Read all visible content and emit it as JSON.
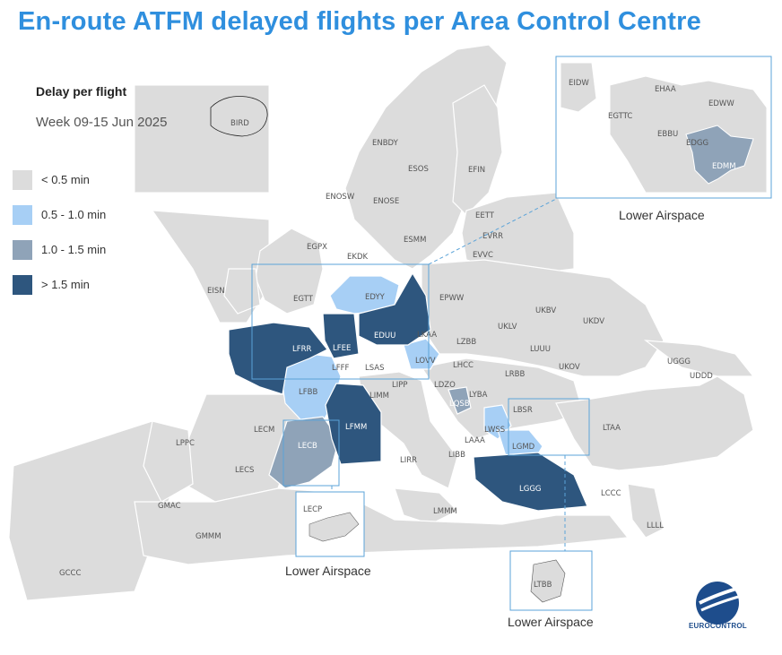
{
  "title": "En-route ATFM delayed flights per Area Control Centre",
  "legend": {
    "title": "Delay per flight",
    "period": "Week 09-15 Jun 2025",
    "items": [
      {
        "label": "<  0.5 min",
        "color": "#dcdcdc"
      },
      {
        "label": "0.5 - 1.0 min",
        "color": "#a7cff5"
      },
      {
        "label": "1.0 - 1.5 min",
        "color": "#8fa3b8"
      },
      {
        "label": ">  1.5 min",
        "color": "#2e567e"
      }
    ]
  },
  "colors": {
    "land": "#dcdcdc",
    "light_blue": "#a7cff5",
    "mid_blue": "#8fa3b8",
    "dark_blue": "#2e567e",
    "inset_border": "#5ba3d8",
    "title": "#2f8fde"
  },
  "acc_labels": {
    "BIRD": "BIRD",
    "EISN": "EISN",
    "EGPX": "EGPX",
    "EGTT": "EGTT",
    "ENOS": "ENOSW",
    "ENBD": "ENBDY",
    "ESOS": "ESOS",
    "EFIN": "EFIN",
    "ENOSE": "ENOSE",
    "ESMM": "ESMM",
    "EETT": "EETT",
    "EVRR": "EVRR",
    "EVVC": "EVVC",
    "EKDK": "EKDK",
    "EDYY": "EDYY",
    "EPWW": "EPWW",
    "UKBV": "UKBV",
    "UKDV": "UKDV",
    "UKLV": "UKLV",
    "LFRR": "LFRR",
    "LFEE": "LFEE",
    "EDUU": "EDUU",
    "LKAA": "LKAA",
    "LZBB": "LZBB",
    "LUUU": "LUUU",
    "LFFF": "LFFF",
    "LOVV": "LOVV",
    "LHCC": "LHCC",
    "LRBB": "LRBB",
    "UKOV": "UKOV",
    "LSAS": "LSAS",
    "LIPP": "LIPP",
    "LDZO": "LDZO",
    "UGGG": "UGGG",
    "UDDD": "UDDD",
    "LFBB": "LFBB",
    "LIMM": "LIMM",
    "LYBA": "LYBA",
    "LQSB": "LQSB",
    "LBSR": "LBSR",
    "LFMM": "LFMM",
    "LECM": "LECM",
    "LWSS": "LWSS",
    "LTAA": "LTAA",
    "LPPC": "LPPC",
    "LECB": "LECB",
    "LAAA": "LAAA",
    "LGMD": "LGMD",
    "LIBB": "LIBB",
    "LECS": "LECS",
    "LIRR": "LIRR",
    "LGGG": "LGGG",
    "LCCC": "LCCC",
    "GMAC": "GMAC",
    "LMMM": "LMMM",
    "LLLL": "LLLL",
    "GMMM": "GMMM",
    "GCCC": "GCCC"
  },
  "insets": {
    "germany": {
      "caption": "Lower Airspace",
      "labels": {
        "EIDW": "EIDW",
        "EHAA": "EHAA",
        "EGTTC": "EGTTC",
        "EDWW": "EDWW",
        "EBBU": "EBBU",
        "EDGG": "EDGG",
        "EDMM": "EDMM"
      }
    },
    "spain": {
      "caption": "Lower Airspace",
      "labels": {
        "LECP": "LECP"
      }
    },
    "turkey": {
      "caption": "Lower Airspace",
      "labels": {
        "LTBB": "LTBB"
      }
    }
  },
  "logo_text": "EUROCONTROL"
}
